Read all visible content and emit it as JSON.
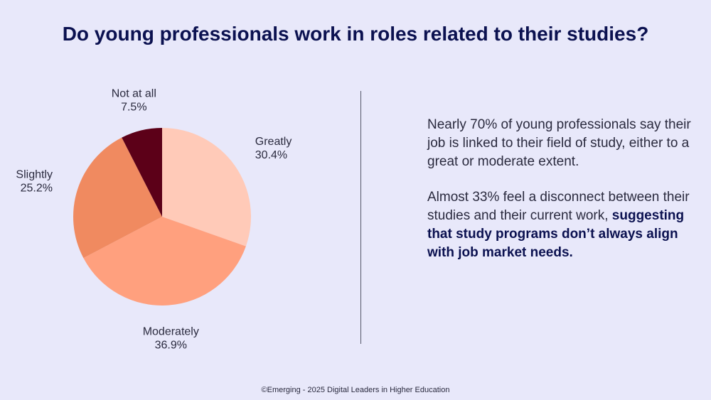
{
  "title": "Do young professionals work in roles related to their studies?",
  "chart_data": {
    "type": "pie",
    "categories": [
      "Greatly",
      "Moderately",
      "Slightly",
      "Not at all"
    ],
    "values": [
      30.4,
      36.9,
      25.2,
      7.5
    ],
    "value_labels": [
      "30.4%",
      "36.9%",
      "25.2%",
      "7.5%"
    ],
    "colors": [
      "#FFCAB8",
      "#FFA07E",
      "#F08A60",
      "#5C0018"
    ],
    "start": "12 o'clock",
    "direction": "clockwise"
  },
  "insights": {
    "para1": "Nearly 70% of young professionals say their job is linked to their field of study, either to a great or moderate extent.",
    "para2_normal": "Almost 33% feel a disconnect between their studies and their current work, ",
    "para2_bold": "suggesting that study programs don’t always align with job market needs."
  },
  "footer": "©Emerging - 2025 Digital Leaders in Higher Education"
}
